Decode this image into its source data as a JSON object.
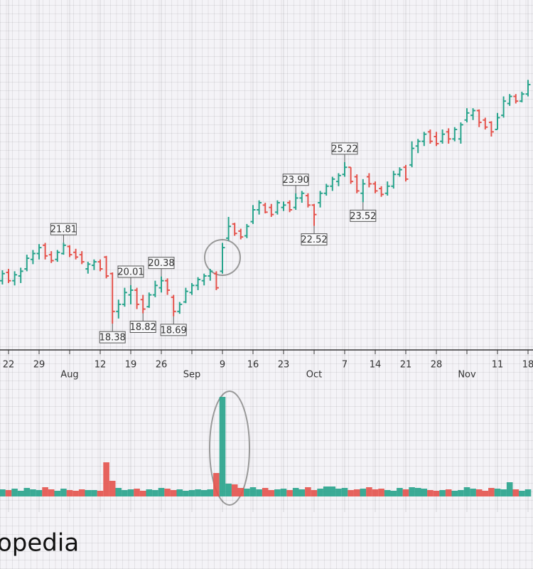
{
  "chart_data": {
    "type": "ohlc",
    "categories": [
      null,
      "22",
      null,
      null,
      null,
      null,
      "29",
      null,
      null,
      null,
      null,
      "Aug",
      null,
      null,
      null,
      null,
      "12",
      null,
      null,
      null,
      null,
      "19",
      null,
      null,
      null,
      null,
      "26",
      null,
      null,
      null,
      null,
      "Sep",
      null,
      null,
      null,
      null,
      "9",
      null,
      null,
      null,
      null,
      "16",
      null,
      null,
      null,
      null,
      "23",
      null,
      null,
      null,
      null,
      "Oct",
      null,
      null,
      null,
      null,
      "7",
      null,
      null,
      null,
      null,
      "14",
      null,
      null,
      null,
      null,
      "21",
      null,
      null,
      null,
      null,
      "28",
      null,
      null,
      null,
      null,
      "Nov",
      null,
      null,
      null,
      null,
      "11",
      null,
      null,
      null,
      null,
      "18"
    ],
    "open": [
      20.2,
      20.55,
      20.2,
      20.4,
      20.7,
      21.1,
      21.35,
      21.7,
      21.3,
      21.1,
      21.35,
      21.65,
      21.4,
      21.3,
      20.7,
      20.85,
      21.0,
      21.2,
      20.5,
      18.9,
      19.2,
      19.6,
      19.8,
      19.4,
      19.1,
      19.6,
      19.9,
      20.2,
      19.5,
      18.9,
      19.3,
      19.7,
      20.0,
      20.2,
      20.4,
      20.5,
      20.6,
      22.0,
      22.6,
      22.3,
      22.1,
      22.7,
      23.2,
      23.4,
      23.3,
      23.1,
      23.3,
      23.5,
      23.3,
      23.7,
      23.8,
      23.4,
      23.5,
      23.9,
      24.2,
      24.4,
      24.7,
      25.0,
      24.6,
      23.9,
      24.6,
      24.3,
      24.1,
      23.9,
      24.2,
      24.7,
      25.0,
      25.1,
      25.9,
      26.1,
      26.5,
      26.3,
      26.1,
      26.5,
      26.2,
      26.2,
      27.0,
      27.2,
      27.4,
      27.0,
      26.9,
      26.6,
      27.2,
      27.7,
      28.0,
      27.8,
      28.1
    ],
    "high": [
      20.64,
      20.7,
      20.6,
      20.75,
      21.3,
      21.5,
      21.75,
      21.8,
      21.45,
      21.5,
      21.81,
      21.7,
      21.55,
      21.45,
      21.0,
      21.1,
      21.1,
      21.25,
      20.55,
      19.4,
      19.9,
      20.01,
      19.9,
      19.6,
      19.7,
      20.2,
      20.38,
      20.3,
      19.6,
      19.3,
      19.9,
      20.1,
      20.35,
      20.5,
      20.7,
      20.6,
      21.8,
      22.9,
      22.65,
      22.4,
      22.6,
      23.4,
      23.6,
      23.5,
      23.45,
      23.6,
      23.55,
      23.6,
      23.9,
      24.0,
      23.9,
      23.45,
      24.0,
      24.3,
      24.6,
      24.75,
      25.22,
      25.0,
      24.7,
      24.5,
      24.75,
      24.4,
      24.2,
      24.4,
      24.85,
      25.0,
      25.1,
      26.1,
      26.2,
      26.5,
      26.6,
      26.5,
      26.6,
      26.65,
      26.7,
      26.9,
      27.5,
      27.5,
      27.45,
      27.1,
      26.95,
      27.3,
      28.0,
      28.1,
      28.1,
      28.2,
      28.7
    ],
    "low": [
      20.04,
      20.1,
      20.0,
      20.1,
      20.6,
      20.9,
      21.1,
      21.1,
      20.95,
      21.0,
      21.3,
      21.2,
      21.1,
      20.9,
      20.5,
      20.65,
      20.6,
      20.3,
      18.38,
      18.6,
      19.1,
      19.2,
      19.0,
      18.82,
      19.05,
      19.5,
      19.7,
      19.6,
      18.69,
      18.8,
      19.25,
      19.6,
      19.8,
      20.0,
      20.2,
      19.8,
      20.5,
      21.9,
      22.1,
      21.95,
      22.0,
      22.6,
      23.0,
      23.05,
      22.9,
      23.0,
      23.15,
      23.1,
      23.2,
      23.5,
      23.3,
      22.52,
      23.3,
      23.8,
      24.0,
      24.2,
      24.6,
      24.3,
      23.9,
      23.52,
      24.15,
      23.9,
      23.75,
      23.8,
      24.1,
      24.6,
      24.4,
      25.0,
      25.6,
      25.9,
      26.0,
      25.9,
      26.0,
      26.0,
      26.1,
      26.0,
      26.9,
      27.0,
      26.7,
      26.6,
      26.3,
      26.6,
      27.1,
      27.6,
      27.7,
      27.75,
      28.0
    ],
    "close": [
      20.5,
      20.2,
      20.45,
      20.6,
      21.15,
      21.35,
      21.6,
      21.25,
      21.05,
      21.4,
      21.7,
      21.3,
      21.2,
      21.0,
      20.9,
      21.0,
      20.7,
      20.4,
      18.9,
      19.2,
      19.7,
      19.8,
      19.2,
      19.0,
      19.6,
      20.0,
      20.2,
      19.8,
      18.9,
      19.2,
      19.75,
      20.0,
      20.25,
      20.4,
      20.6,
      19.9,
      21.6,
      22.5,
      22.2,
      22.05,
      22.5,
      23.2,
      23.5,
      23.1,
      23.0,
      23.5,
      23.4,
      23.2,
      23.7,
      23.9,
      23.4,
      23.0,
      23.9,
      24.2,
      24.5,
      24.65,
      25.0,
      24.4,
      24.0,
      24.3,
      24.3,
      24.0,
      23.85,
      24.2,
      24.7,
      24.9,
      24.5,
      25.8,
      26.1,
      26.4,
      26.1,
      26.0,
      26.4,
      26.2,
      26.6,
      26.8,
      27.3,
      27.4,
      26.9,
      26.7,
      26.5,
      27.1,
      27.8,
      28.0,
      27.8,
      28.1,
      28.5
    ],
    "high_labels": [
      null,
      null,
      null,
      null,
      null,
      null,
      null,
      null,
      null,
      null,
      "21.81",
      null,
      null,
      null,
      null,
      null,
      null,
      null,
      null,
      null,
      null,
      "20.01",
      null,
      null,
      null,
      null,
      "20.38",
      null,
      null,
      null,
      null,
      null,
      null,
      null,
      null,
      null,
      null,
      null,
      null,
      null,
      null,
      null,
      null,
      null,
      null,
      null,
      null,
      null,
      "23.90",
      null,
      null,
      null,
      null,
      null,
      null,
      null,
      "25.22",
      null,
      null,
      null,
      null,
      null,
      null,
      null,
      null,
      null,
      null,
      null,
      null,
      null,
      null,
      null,
      null,
      null,
      null,
      null,
      null,
      null,
      null,
      null,
      null,
      null,
      null,
      null,
      null,
      null,
      null
    ],
    "low_labels": [
      null,
      null,
      null,
      null,
      null,
      null,
      null,
      null,
      null,
      null,
      null,
      null,
      null,
      null,
      null,
      null,
      null,
      null,
      "18.38",
      null,
      null,
      null,
      null,
      "18.82",
      null,
      null,
      null,
      null,
      "18.69",
      null,
      null,
      null,
      null,
      null,
      null,
      null,
      null,
      null,
      null,
      null,
      null,
      null,
      null,
      null,
      null,
      null,
      null,
      null,
      null,
      null,
      null,
      "22.52",
      null,
      null,
      null,
      null,
      null,
      null,
      null,
      "23.52",
      null,
      null,
      null,
      null,
      null,
      null,
      null,
      null,
      null,
      null,
      null,
      null,
      null,
      null,
      null,
      null,
      null,
      null,
      null,
      null,
      null,
      null,
      null,
      null,
      null,
      null,
      null
    ],
    "volume": [
      1.0,
      0.9,
      1.1,
      0.8,
      1.2,
      1.0,
      0.9,
      1.3,
      1.0,
      0.8,
      1.1,
      0.9,
      0.8,
      1.0,
      0.9,
      0.9,
      0.8,
      4.8,
      2.2,
      1.2,
      0.9,
      1.0,
      1.1,
      0.8,
      1.0,
      0.9,
      1.2,
      1.1,
      0.9,
      1.0,
      0.8,
      0.9,
      1.0,
      0.9,
      1.0,
      3.3,
      14.0,
      1.8,
      1.7,
      1.2,
      1.1,
      1.3,
      1.0,
      1.2,
      0.9,
      1.0,
      1.1,
      0.9,
      1.2,
      1.0,
      1.3,
      0.9,
      1.1,
      1.4,
      1.4,
      1.1,
      1.2,
      0.9,
      1.0,
      1.1,
      1.3,
      1.0,
      1.1,
      0.9,
      0.8,
      1.2,
      1.0,
      1.3,
      1.2,
      1.1,
      0.9,
      0.8,
      0.9,
      1.0,
      0.8,
      0.9,
      1.3,
      1.1,
      1.0,
      0.8,
      1.2,
      1.1,
      1.0,
      2.0,
      1.0,
      0.8,
      1.0
    ],
    "up_color": "#27a38b",
    "down_color": "#e4524b",
    "ylim": [
      17.33,
      32.08
    ],
    "volume_ylim": [
      0,
      15
    ]
  },
  "logo": "opedia"
}
